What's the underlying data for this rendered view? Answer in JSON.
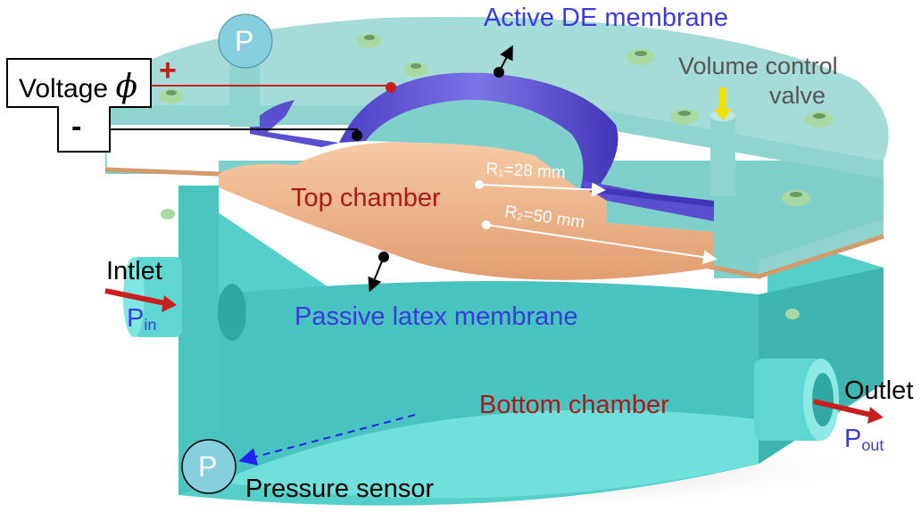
{
  "labels": {
    "voltage": "Voltage",
    "voltage_symbol": "ϕ",
    "plus": "+",
    "minus": "-",
    "active_membrane": "Active DE membrane",
    "volume_valve_line1": "Volume control",
    "volume_valve_line2": "valve",
    "r1": "R₁=28 mm",
    "r2": "R₂=50 mm",
    "top_chamber": "Top chamber",
    "passive_membrane": "Passive latex membrane",
    "bottom_chamber": "Bottom chamber",
    "inlet": "Intlet",
    "p_in_main": "P",
    "p_in_sub": "in",
    "outlet": "Outlet",
    "p_out_main": "P",
    "p_out_sub": "out",
    "pressure_sensor": "Pressure sensor",
    "gauge_letter": "P"
  },
  "colors": {
    "housing": "#5fd6d2",
    "lid": "#a6dcd8",
    "membrane_active": "#5a4fd0",
    "membrane_passive": "#e9a67a",
    "label_blue": "#3a3ae0",
    "label_red": "#b01818",
    "arrow_red": "#c81e1e",
    "bolt": "#a9d9a3"
  }
}
